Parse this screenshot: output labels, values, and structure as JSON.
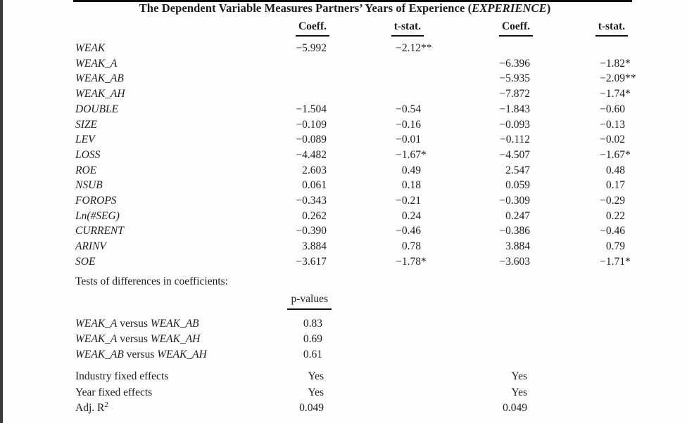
{
  "page": {
    "background": "#fefefe",
    "text_color": "#1c1c1c",
    "left_bar_color": "#3b3b3b",
    "rule_color": "#0a0a0a"
  },
  "title": {
    "prefix": "The Dependent Variable Measures Partners’ Years of Experience (",
    "variable": "EXPERIENCE",
    "suffix": ")"
  },
  "columns": {
    "coeff1": "Coeff.",
    "tstat1": "t-stat.",
    "coeff2": "Coeff.",
    "tstat2": "t-stat."
  },
  "rows": [
    {
      "label": "WEAK",
      "c1": "−5.992",
      "t1": "−2.12",
      "t1s": "**",
      "c2": "",
      "t2": "",
      "t2s": ""
    },
    {
      "label": "WEAK_A",
      "c1": "",
      "t1": "",
      "t1s": "",
      "c2": "−6.396",
      "t2": "−1.82",
      "t2s": "*"
    },
    {
      "label": "WEAK_AB",
      "c1": "",
      "t1": "",
      "t1s": "",
      "c2": "−5.935",
      "t2": "−2.09",
      "t2s": "**"
    },
    {
      "label": "WEAK_AH",
      "c1": "",
      "t1": "",
      "t1s": "",
      "c2": "−7.872",
      "t2": "−1.74",
      "t2s": "*"
    },
    {
      "label": "DOUBLE",
      "c1": "−1.504",
      "t1": "−0.54",
      "t1s": "",
      "c2": "−1.843",
      "t2": "−0.60",
      "t2s": ""
    },
    {
      "label": "SIZE",
      "c1": "−0.109",
      "t1": "−0.16",
      "t1s": "",
      "c2": "−0.093",
      "t2": "−0.13",
      "t2s": ""
    },
    {
      "label": "LEV",
      "c1": "−0.089",
      "t1": "−0.01",
      "t1s": "",
      "c2": "−0.112",
      "t2": "−0.02",
      "t2s": ""
    },
    {
      "label": "LOSS",
      "c1": "−4.482",
      "t1": "−1.67",
      "t1s": "*",
      "c2": "−4.507",
      "t2": "−1.67",
      "t2s": "*"
    },
    {
      "label": "ROE",
      "c1": "2.603",
      "t1": "0.49",
      "t1s": "",
      "c2": "2.547",
      "t2": "0.48",
      "t2s": ""
    },
    {
      "label": "NSUB",
      "c1": "0.061",
      "t1": "0.18",
      "t1s": "",
      "c2": "0.059",
      "t2": "0.17",
      "t2s": ""
    },
    {
      "label": "FOROPS",
      "c1": "−0.343",
      "t1": "−0.21",
      "t1s": "",
      "c2": "−0.309",
      "t2": "−0.29",
      "t2s": ""
    },
    {
      "label": "Ln(#SEG)",
      "c1": "0.262",
      "t1": "0.24",
      "t1s": "",
      "c2": "0.247",
      "t2": "0.22",
      "t2s": ""
    },
    {
      "label": "CURRENT",
      "c1": "−0.390",
      "t1": "−0.46",
      "t1s": "",
      "c2": "−0.386",
      "t2": "−0.46",
      "t2s": ""
    },
    {
      "label": "ARINV",
      "c1": "3.884",
      "t1": "0.78",
      "t1s": "",
      "c2": "3.884",
      "t2": "0.79",
      "t2s": ""
    },
    {
      "label": "SOE",
      "c1": "−3.617",
      "t1": "−1.78",
      "t1s": "*",
      "c2": "−3.603",
      "t2": "−1.71",
      "t2s": "*"
    }
  ],
  "tests_section": {
    "heading": "Tests of differences in coefficients:",
    "col_header": "p-values",
    "versus_label": " versus ",
    "rows": [
      {
        "a": "WEAK_A",
        "b": "WEAK_AB",
        "p": "0.83"
      },
      {
        "a": "WEAK_A",
        "b": "WEAK_AH",
        "p": "0.69"
      },
      {
        "a": "WEAK_AB",
        "b": "WEAK_AH",
        "p": "0.61"
      }
    ]
  },
  "summary_rows": [
    {
      "label": "Industry fixed effects",
      "sup": "",
      "v1": "Yes",
      "v2": "Yes"
    },
    {
      "label": "Year fixed effects",
      "sup": "",
      "v1": "Yes",
      "v2": "Yes"
    },
    {
      "label": "Adj. R",
      "sup": "2",
      "v1": "0.049",
      "v2": "0.049"
    }
  ]
}
